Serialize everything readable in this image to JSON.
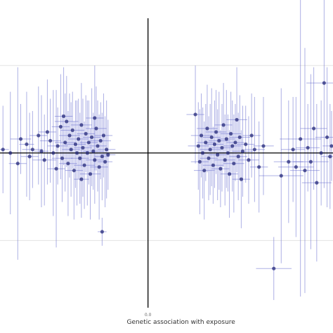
{
  "chart_data": {
    "type": "scatter",
    "title": "",
    "xlabel": "Genetic association with exposure",
    "ylabel": "",
    "x_tick_labels": [
      "0.0"
    ],
    "xlim": [
      -1.0,
      1.25
    ],
    "ylim": [
      -0.9,
      0.85
    ],
    "grid": true,
    "y_gridlines": [
      0.5,
      -0.5
    ],
    "colors": {
      "point": "#26297a",
      "error_bar": "#6a6fd0",
      "axis": "#000000",
      "grid": "#e3e3e3"
    },
    "series": [
      {
        "points": [
          {
            "x": -0.98,
            "y": 0.02,
            "xerr": 0.04,
            "yerr": 0.25
          },
          {
            "x": -0.93,
            "y": 0.0,
            "xerr": 0.05,
            "yerr": 0.35
          },
          {
            "x": -0.88,
            "y": -0.06,
            "xerr": 0.06,
            "yerr": 0.55
          },
          {
            "x": -0.86,
            "y": 0.08,
            "xerr": 0.07,
            "yerr": 0.2
          },
          {
            "x": -0.82,
            "y": 0.05,
            "xerr": 0.05,
            "yerr": 0.3
          },
          {
            "x": -0.8,
            "y": -0.02,
            "xerr": 0.06,
            "yerr": 0.25
          },
          {
            "x": -0.78,
            "y": 0.02,
            "xerr": 0.07,
            "yerr": 0.22
          },
          {
            "x": -0.74,
            "y": 0.1,
            "xerr": 0.06,
            "yerr": 0.28
          },
          {
            "x": -0.72,
            "y": 0.01,
            "xerr": 0.05,
            "yerr": 0.32
          },
          {
            "x": -0.7,
            "y": -0.04,
            "xerr": 0.08,
            "yerr": 0.26
          },
          {
            "x": -0.68,
            "y": 0.12,
            "xerr": 0.06,
            "yerr": 0.3
          },
          {
            "x": -0.66,
            "y": 0.07,
            "xerr": 0.07,
            "yerr": 0.24
          },
          {
            "x": -0.64,
            "y": 0.0,
            "xerr": 0.06,
            "yerr": 0.36
          },
          {
            "x": -0.62,
            "y": -0.09,
            "xerr": 0.06,
            "yerr": 0.45
          },
          {
            "x": -0.61,
            "y": 0.04,
            "xerr": 0.07,
            "yerr": 0.22
          },
          {
            "x": -0.59,
            "y": 0.15,
            "xerr": 0.06,
            "yerr": 0.3
          },
          {
            "x": -0.58,
            "y": -0.03,
            "xerr": 0.07,
            "yerr": 0.25
          },
          {
            "x": -0.56,
            "y": 0.06,
            "xerr": 0.07,
            "yerr": 0.28
          },
          {
            "x": -0.55,
            "y": 0.18,
            "xerr": 0.08,
            "yerr": 0.26
          },
          {
            "x": -0.54,
            "y": -0.06,
            "xerr": 0.06,
            "yerr": 0.3
          },
          {
            "x": -0.53,
            "y": 0.1,
            "xerr": 0.07,
            "yerr": 0.24
          },
          {
            "x": -0.52,
            "y": 0.02,
            "xerr": 0.06,
            "yerr": 0.27
          },
          {
            "x": -0.51,
            "y": 0.13,
            "xerr": 0.08,
            "yerr": 0.22
          },
          {
            "x": -0.5,
            "y": -0.1,
            "xerr": 0.06,
            "yerr": 0.28
          },
          {
            "x": -0.49,
            "y": 0.05,
            "xerr": 0.07,
            "yerr": 0.25
          },
          {
            "x": -0.48,
            "y": 0.0,
            "xerr": 0.06,
            "yerr": 0.3
          },
          {
            "x": -0.47,
            "y": 0.08,
            "xerr": 0.07,
            "yerr": 0.23
          },
          {
            "x": -0.46,
            "y": -0.03,
            "xerr": 0.06,
            "yerr": 0.26
          },
          {
            "x": -0.45,
            "y": 0.16,
            "xerr": 0.07,
            "yerr": 0.24
          },
          {
            "x": -0.44,
            "y": 0.03,
            "xerr": 0.06,
            "yerr": 0.28
          },
          {
            "x": -0.43,
            "y": -0.07,
            "xerr": 0.07,
            "yerr": 0.25
          },
          {
            "x": -0.42,
            "y": 0.11,
            "xerr": 0.06,
            "yerr": 0.22
          },
          {
            "x": -0.41,
            "y": 0.0,
            "xerr": 0.07,
            "yerr": 0.3
          },
          {
            "x": -0.4,
            "y": 0.06,
            "xerr": 0.06,
            "yerr": 0.24
          },
          {
            "x": -0.39,
            "y": -0.12,
            "xerr": 0.07,
            "yerr": 0.26
          },
          {
            "x": -0.38,
            "y": 0.09,
            "xerr": 0.06,
            "yerr": 0.28
          },
          {
            "x": -0.37,
            "y": 0.01,
            "xerr": 0.07,
            "yerr": 0.22
          },
          {
            "x": -0.36,
            "y": -0.04,
            "xerr": 0.06,
            "yerr": 0.25
          },
          {
            "x": -0.35,
            "y": 0.14,
            "xerr": 0.07,
            "yerr": 0.24
          },
          {
            "x": -0.34,
            "y": 0.04,
            "xerr": 0.06,
            "yerr": 0.26
          },
          {
            "x": -0.33,
            "y": -0.08,
            "xerr": 0.06,
            "yerr": 0.3
          },
          {
            "x": -0.32,
            "y": 0.07,
            "xerr": 0.07,
            "yerr": 0.22
          },
          {
            "x": -0.31,
            "y": -0.02,
            "xerr": 0.05,
            "yerr": 0.25
          },
          {
            "x": -0.3,
            "y": 0.1,
            "xerr": 0.06,
            "yerr": 0.24
          },
          {
            "x": -0.29,
            "y": -0.05,
            "xerr": 0.05,
            "yerr": 0.26
          },
          {
            "x": -0.28,
            "y": 0.02,
            "xerr": 0.06,
            "yerr": 0.28
          },
          {
            "x": -0.27,
            "y": -0.01,
            "xerr": 0.05,
            "yerr": 0.2
          },
          {
            "x": -0.31,
            "y": -0.45,
            "xerr": 0.03,
            "yerr": 0.08
          },
          {
            "x": -0.36,
            "y": 0.2,
            "xerr": 0.06,
            "yerr": 0.3
          },
          {
            "x": -0.45,
            "y": -0.15,
            "xerr": 0.05,
            "yerr": 0.22
          },
          {
            "x": -0.57,
            "y": 0.21,
            "xerr": 0.06,
            "yerr": 0.28
          },
          {
            "x": 0.32,
            "y": 0.22,
            "xerr": 0.06,
            "yerr": 0.28
          },
          {
            "x": 0.34,
            "y": 0.04,
            "xerr": 0.07,
            "yerr": 0.25
          },
          {
            "x": 0.35,
            "y": -0.05,
            "xerr": 0.06,
            "yerr": 0.3
          },
          {
            "x": 0.36,
            "y": 0.1,
            "xerr": 0.07,
            "yerr": 0.24
          },
          {
            "x": 0.37,
            "y": 0.0,
            "xerr": 0.06,
            "yerr": 0.26
          },
          {
            "x": 0.38,
            "y": -0.1,
            "xerr": 0.07,
            "yerr": 0.28
          },
          {
            "x": 0.39,
            "y": 0.06,
            "xerr": 0.06,
            "yerr": 0.22
          },
          {
            "x": 0.4,
            "y": 0.14,
            "xerr": 0.07,
            "yerr": 0.25
          },
          {
            "x": 0.41,
            "y": -0.03,
            "xerr": 0.06,
            "yerr": 0.24
          },
          {
            "x": 0.42,
            "y": 0.02,
            "xerr": 0.07,
            "yerr": 0.26
          },
          {
            "x": 0.43,
            "y": 0.09,
            "xerr": 0.06,
            "yerr": 0.28
          },
          {
            "x": 0.44,
            "y": -0.07,
            "xerr": 0.07,
            "yerr": 0.22
          },
          {
            "x": 0.45,
            "y": 0.05,
            "xerr": 0.06,
            "yerr": 0.25
          },
          {
            "x": 0.46,
            "y": 0.12,
            "xerr": 0.07,
            "yerr": 0.24
          },
          {
            "x": 0.47,
            "y": -0.01,
            "xerr": 0.06,
            "yerr": 0.26
          },
          {
            "x": 0.48,
            "y": 0.07,
            "xerr": 0.07,
            "yerr": 0.28
          },
          {
            "x": 0.49,
            "y": -0.09,
            "xerr": 0.06,
            "yerr": 0.22
          },
          {
            "x": 0.5,
            "y": 0.03,
            "xerr": 0.07,
            "yerr": 0.25
          },
          {
            "x": 0.51,
            "y": 0.16,
            "xerr": 0.06,
            "yerr": 0.24
          },
          {
            "x": 0.52,
            "y": -0.04,
            "xerr": 0.07,
            "yerr": 0.26
          },
          {
            "x": 0.53,
            "y": 0.08,
            "xerr": 0.06,
            "yerr": 0.28
          },
          {
            "x": 0.54,
            "y": 0.0,
            "xerr": 0.07,
            "yerr": 0.22
          },
          {
            "x": 0.55,
            "y": -0.12,
            "xerr": 0.06,
            "yerr": 0.25
          },
          {
            "x": 0.56,
            "y": 0.11,
            "xerr": 0.07,
            "yerr": 0.24
          },
          {
            "x": 0.57,
            "y": 0.04,
            "xerr": 0.06,
            "yerr": 0.26
          },
          {
            "x": 0.58,
            "y": -0.06,
            "xerr": 0.07,
            "yerr": 0.28
          },
          {
            "x": 0.59,
            "y": 0.06,
            "xerr": 0.06,
            "yerr": 0.22
          },
          {
            "x": 0.6,
            "y": 0.19,
            "xerr": 0.07,
            "yerr": 0.3
          },
          {
            "x": 0.61,
            "y": -0.02,
            "xerr": 0.06,
            "yerr": 0.25
          },
          {
            "x": 0.62,
            "y": 0.09,
            "xerr": 0.07,
            "yerr": 0.24
          },
          {
            "x": 0.63,
            "y": -0.15,
            "xerr": 0.06,
            "yerr": 0.28
          },
          {
            "x": 0.64,
            "y": 0.01,
            "xerr": 0.07,
            "yerr": 0.26
          },
          {
            "x": 0.66,
            "y": 0.05,
            "xerr": 0.06,
            "yerr": 0.22
          },
          {
            "x": 0.68,
            "y": -0.04,
            "xerr": 0.07,
            "yerr": 0.25
          },
          {
            "x": 0.7,
            "y": 0.1,
            "xerr": 0.06,
            "yerr": 0.24
          },
          {
            "x": 0.72,
            "y": 0.02,
            "xerr": 0.07,
            "yerr": 0.3
          },
          {
            "x": 0.75,
            "y": -0.08,
            "xerr": 0.06,
            "yerr": 0.26
          },
          {
            "x": 0.78,
            "y": 0.04,
            "xerr": 0.07,
            "yerr": 0.28
          },
          {
            "x": 0.85,
            "y": -0.66,
            "xerr": 0.12,
            "yerr": 0.18
          },
          {
            "x": 0.9,
            "y": -0.13,
            "xerr": 0.15,
            "yerr": 0.5
          },
          {
            "x": 0.95,
            "y": -0.05,
            "xerr": 0.1,
            "yerr": 0.35
          },
          {
            "x": 0.98,
            "y": 0.02,
            "xerr": 0.08,
            "yerr": 0.3
          },
          {
            "x": 1.0,
            "y": -0.08,
            "xerr": 0.12,
            "yerr": 0.4
          },
          {
            "x": 1.03,
            "y": 0.08,
            "xerr": 0.14,
            "yerr": 0.9
          },
          {
            "x": 1.06,
            "y": -0.1,
            "xerr": 0.1,
            "yerr": 0.7
          },
          {
            "x": 1.08,
            "y": 0.03,
            "xerr": 0.08,
            "yerr": 0.25
          },
          {
            "x": 1.1,
            "y": -0.05,
            "xerr": 0.12,
            "yerr": 0.5
          },
          {
            "x": 1.12,
            "y": 0.14,
            "xerr": 0.09,
            "yerr": 0.35
          },
          {
            "x": 1.14,
            "y": -0.17,
            "xerr": 0.1,
            "yerr": 0.45
          },
          {
            "x": 1.17,
            "y": 0.0,
            "xerr": 0.11,
            "yerr": 0.3
          },
          {
            "x": 1.19,
            "y": 0.4,
            "xerr": 0.12,
            "yerr": 0.6
          },
          {
            "x": 1.21,
            "y": 0.09,
            "xerr": 0.08,
            "yerr": 0.4
          },
          {
            "x": 1.23,
            "y": -0.02,
            "xerr": 0.06,
            "yerr": 0.3
          },
          {
            "x": 1.24,
            "y": 0.04,
            "xerr": 0.06,
            "yerr": 0.2
          }
        ]
      }
    ]
  }
}
